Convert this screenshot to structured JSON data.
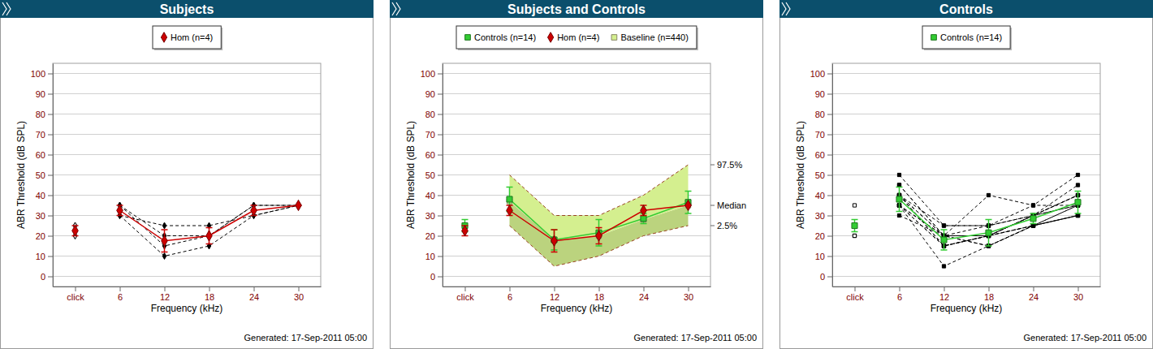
{
  "chart_data": [
    {
      "type": "line",
      "title": "Subjects",
      "x_label": "Frequency (kHz)",
      "y_label": "ABR Threshold (dB SPL)",
      "footer": "Generated: 17-Sep-2011 05:00",
      "categories": [
        "click",
        "6",
        "12",
        "18",
        "24",
        "30"
      ],
      "ylim": [
        -5,
        105
      ],
      "yticks": [
        0,
        10,
        20,
        30,
        40,
        50,
        60,
        70,
        80,
        90,
        100
      ],
      "grid": true,
      "legend": "top",
      "series": [
        {
          "name": "Hom (n=4)",
          "color": "#cc0000",
          "marker": "diamond",
          "line_style": "solid",
          "values": [
            22.5,
            32.5,
            17.5,
            20,
            32.5,
            35
          ],
          "error": [
            2.5,
            2.5,
            5.5,
            4,
            2.5,
            0
          ]
        },
        {
          "color": "#000000",
          "marker": "diamond",
          "line_style": "dashed",
          "values": [
            20,
            30,
            10,
            15,
            30,
            35
          ]
        },
        {
          "color": "#000000",
          "marker": "diamond",
          "line_style": "dashed",
          "values": [
            25,
            35,
            15,
            20,
            35,
            35
          ]
        },
        {
          "color": "#000000",
          "marker": "diamond",
          "line_style": "dashed",
          "values": [
            20,
            35,
            20,
            20,
            35,
            35
          ]
        },
        {
          "color": "#000000",
          "marker": "diamond",
          "line_style": "dashed",
          "values": [
            25,
            30,
            25,
            25,
            30,
            35
          ]
        }
      ]
    },
    {
      "type": "line",
      "title": "Subjects and Controls",
      "x_label": "Frequency (kHz)",
      "y_label": "ABR Threshold (dB SPL)",
      "footer": "Generated: 17-Sep-2011 05:00",
      "categories": [
        "click",
        "6",
        "12",
        "18",
        "24",
        "30"
      ],
      "ylim": [
        -5,
        105
      ],
      "yticks": [
        0,
        10,
        20,
        30,
        40,
        50,
        60,
        70,
        80,
        90,
        100
      ],
      "grid": true,
      "legend": "top",
      "series": [
        {
          "name": "Controls (n=14)",
          "color": "#33cc33",
          "marker": "square",
          "line_style": "solid",
          "values": [
            25,
            38,
            18,
            21.5,
            28.5,
            36.5
          ],
          "error": [
            3,
            6,
            5,
            6.5,
            2.5,
            5.5
          ]
        },
        {
          "name": "Hom (n=4)",
          "color": "#cc0000",
          "marker": "diamond",
          "line_style": "solid",
          "values": [
            22.5,
            32.5,
            17.5,
            20,
            32.5,
            35
          ],
          "error": [
            2.5,
            2.5,
            5.5,
            4,
            2.5,
            0
          ]
        },
        {
          "name": "Baseline (n=440)",
          "type": "band",
          "color": "#d4ef8f",
          "marker": "square",
          "line_style": "dashed",
          "values": [
            25,
            37,
            18,
            20,
            28,
            35
          ],
          "lower": [
            null,
            25,
            5,
            10,
            20,
            25
          ],
          "upper": [
            null,
            50,
            30,
            30,
            40,
            55
          ],
          "percentile_labels": {
            "upper": "97.5%",
            "median": "Median",
            "lower": "2.5%"
          }
        }
      ]
    },
    {
      "type": "line",
      "title": "Controls",
      "x_label": "Frequency (kHz)",
      "y_label": "ABR Threshold (dB SPL)",
      "footer": "Generated: 17-Sep-2011 05:00",
      "categories": [
        "click",
        "6",
        "12",
        "18",
        "24",
        "30"
      ],
      "ylim": [
        -5,
        105
      ],
      "yticks": [
        0,
        10,
        20,
        30,
        40,
        50,
        60,
        70,
        80,
        90,
        100
      ],
      "grid": true,
      "legend": "top",
      "series": [
        {
          "name": "Controls (n=14)",
          "color": "#33cc33",
          "marker": "square",
          "line_style": "solid",
          "values": [
            25,
            38,
            18,
            21.5,
            28.5,
            36.5
          ],
          "error": [
            3,
            6,
            5,
            6.5,
            2.5,
            5.5
          ]
        },
        {
          "color": "#000000",
          "marker": "square",
          "line_style": "dashed",
          "values": [
            25,
            50,
            25,
            25,
            35,
            50
          ]
        },
        {
          "color": "#000000",
          "marker": "square",
          "line_style": "dashed",
          "values": [
            25,
            45,
            20,
            20,
            30,
            45
          ]
        },
        {
          "color": "#000000",
          "marker": "square",
          "line_style": "dashed",
          "values": [
            25,
            40,
            15,
            20,
            30,
            40
          ]
        },
        {
          "color": "#000000",
          "marker": "square",
          "line_style": "dashed",
          "values": [
            20,
            35,
            5,
            15,
            25,
            30
          ]
        },
        {
          "color": "#000000",
          "marker": "square",
          "line_style": "dashed",
          "values": [
            25,
            40,
            20,
            40,
            35,
            35
          ]
        },
        {
          "color": "#000000",
          "marker": "square",
          "line_style": "dashed",
          "values": [
            25,
            35,
            15,
            20,
            25,
            35
          ]
        },
        {
          "color": "#000000",
          "marker": "square",
          "line_style": "dashed",
          "values": [
            25,
            30,
            20,
            15,
            25,
            30
          ]
        },
        {
          "color": "#000000",
          "marker": "square",
          "line_style": "dashed",
          "values": [
            25,
            40,
            25,
            25,
            30,
            40
          ]
        },
        {
          "color": "#000000",
          "marker": "square",
          "line_style": "dashed",
          "values": [
            35,
            45,
            20,
            20,
            30,
            35
          ]
        },
        {
          "color": "#000000",
          "marker": "square",
          "line_style": "dashed",
          "values": [
            25,
            35,
            15,
            20,
            25,
            30
          ]
        },
        {
          "color": "#000000",
          "marker": "square",
          "line_style": "dashed",
          "values": [
            20,
            40,
            20,
            25,
            30,
            40
          ]
        },
        {
          "color": "#000000",
          "marker": "square",
          "line_style": "dashed",
          "values": [
            25,
            35,
            20,
            20,
            30,
            35
          ]
        },
        {
          "color": "#000000",
          "marker": "square",
          "line_style": "dashed",
          "values": [
            25,
            40,
            15,
            20,
            25,
            30
          ]
        },
        {
          "color": "#000000",
          "marker": "square",
          "line_style": "dashed",
          "values": [
            25,
            35,
            20,
            15,
            25,
            35
          ]
        }
      ]
    }
  ]
}
